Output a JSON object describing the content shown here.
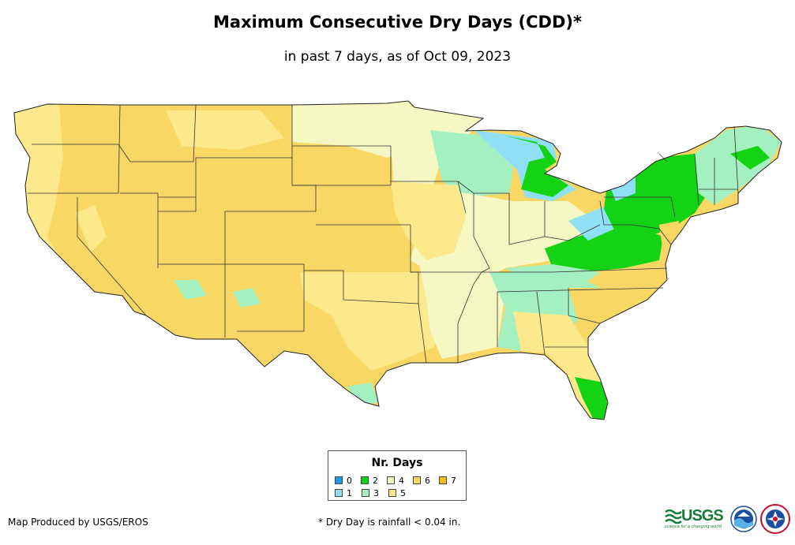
{
  "title": "Maximum Consecutive Dry Days (CDD)*",
  "subtitle": "in past 7 days, as of Oct 09, 2023",
  "legend": {
    "title": "Nr. Days",
    "items": [
      {
        "label": "0",
        "color": "#1e9ae6"
      },
      {
        "label": "1",
        "color": "#8fe0f5"
      },
      {
        "label": "2",
        "color": "#14d214"
      },
      {
        "label": "3",
        "color": "#a5f0c0"
      },
      {
        "label": "4",
        "color": "#f6f8c4"
      },
      {
        "label": "5",
        "color": "#fbe98c"
      },
      {
        "label": "6",
        "color": "#f9d765"
      },
      {
        "label": "7",
        "color": "#f5c010"
      }
    ]
  },
  "credit": "Map Produced by USGS/EROS",
  "footnote": "* Dry Day is rainfall < 0.04 in.",
  "logos": {
    "usgs": "USGS",
    "usgs_tagline": "science for a changing world",
    "noaa_icon": "noaa-logo-icon",
    "nws_icon": "nws-logo-icon"
  }
}
